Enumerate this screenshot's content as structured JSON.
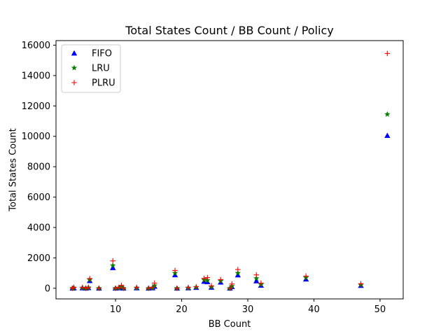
{
  "chart_data": {
    "type": "scatter",
    "title": "Total States Count / BB Count / Policy",
    "xlabel": "BB Count",
    "ylabel": "Total States Count",
    "xlim": [
      1,
      53.5
    ],
    "ylim": [
      -700,
      16300
    ],
    "xticks": [
      10,
      20,
      30,
      40,
      50
    ],
    "yticks": [
      0,
      2000,
      4000,
      6000,
      8000,
      10000,
      12000,
      14000,
      16000
    ],
    "legend_position": "top-left",
    "series": [
      {
        "name": "FIFO",
        "marker": "triangle",
        "color": "#0000ff",
        "points": [
          [
            3.5,
            0
          ],
          [
            3.7,
            20
          ],
          [
            5,
            20
          ],
          [
            5.5,
            0
          ],
          [
            5.9,
            30
          ],
          [
            6.1,
            500
          ],
          [
            7.5,
            0
          ],
          [
            9.6,
            1350
          ],
          [
            10,
            0
          ],
          [
            10.5,
            20
          ],
          [
            10.9,
            90
          ],
          [
            11.2,
            0
          ],
          [
            13.2,
            20
          ],
          [
            15,
            0
          ],
          [
            15.6,
            20
          ],
          [
            15.9,
            120
          ],
          [
            19,
            880
          ],
          [
            19.3,
            0
          ],
          [
            21,
            20
          ],
          [
            22.2,
            50
          ],
          [
            23.4,
            450
          ],
          [
            23.9,
            420
          ],
          [
            24.5,
            60
          ],
          [
            25.9,
            400
          ],
          [
            27.3,
            0
          ],
          [
            27.6,
            100
          ],
          [
            28.5,
            870
          ],
          [
            31.3,
            480
          ],
          [
            32,
            190
          ],
          [
            38.8,
            600
          ],
          [
            47.1,
            180
          ],
          [
            51.1,
            10050
          ]
        ]
      },
      {
        "name": "LRU",
        "marker": "star",
        "color": "#008000",
        "points": [
          [
            3.5,
            0
          ],
          [
            3.7,
            30
          ],
          [
            5,
            30
          ],
          [
            5.5,
            0
          ],
          [
            5.9,
            40
          ],
          [
            6.1,
            560
          ],
          [
            7.5,
            0
          ],
          [
            9.6,
            1500
          ],
          [
            10,
            0
          ],
          [
            10.5,
            30
          ],
          [
            10.9,
            110
          ],
          [
            11.2,
            0
          ],
          [
            13.2,
            30
          ],
          [
            15,
            0
          ],
          [
            15.6,
            30
          ],
          [
            15.9,
            180
          ],
          [
            19,
            1000
          ],
          [
            19.3,
            0
          ],
          [
            21,
            30
          ],
          [
            22.2,
            70
          ],
          [
            23.4,
            550
          ],
          [
            23.9,
            520
          ],
          [
            24.5,
            90
          ],
          [
            25.9,
            480
          ],
          [
            27.3,
            0
          ],
          [
            27.6,
            140
          ],
          [
            28.5,
            1000
          ],
          [
            31.3,
            650
          ],
          [
            32,
            240
          ],
          [
            38.8,
            700
          ],
          [
            47.1,
            220
          ],
          [
            51.1,
            11450
          ]
        ]
      },
      {
        "name": "PLRU",
        "marker": "plus",
        "color": "#ff0000",
        "points": [
          [
            3.5,
            0
          ],
          [
            3.7,
            60
          ],
          [
            5,
            60
          ],
          [
            5.5,
            0
          ],
          [
            5.9,
            60
          ],
          [
            6.1,
            640
          ],
          [
            7.5,
            0
          ],
          [
            9.6,
            1800
          ],
          [
            10,
            0
          ],
          [
            10.5,
            60
          ],
          [
            10.9,
            190
          ],
          [
            11.2,
            0
          ],
          [
            13.2,
            50
          ],
          [
            15,
            0
          ],
          [
            15.6,
            60
          ],
          [
            15.9,
            340
          ],
          [
            19,
            1170
          ],
          [
            19.3,
            0
          ],
          [
            21,
            50
          ],
          [
            22.2,
            100
          ],
          [
            23.4,
            650
          ],
          [
            23.9,
            700
          ],
          [
            24.5,
            160
          ],
          [
            25.9,
            570
          ],
          [
            27.3,
            0
          ],
          [
            27.6,
            280
          ],
          [
            28.5,
            1230
          ],
          [
            31.3,
            880
          ],
          [
            32,
            340
          ],
          [
            38.8,
            800
          ],
          [
            47.1,
            300
          ],
          [
            51.1,
            15450
          ]
        ]
      }
    ]
  }
}
